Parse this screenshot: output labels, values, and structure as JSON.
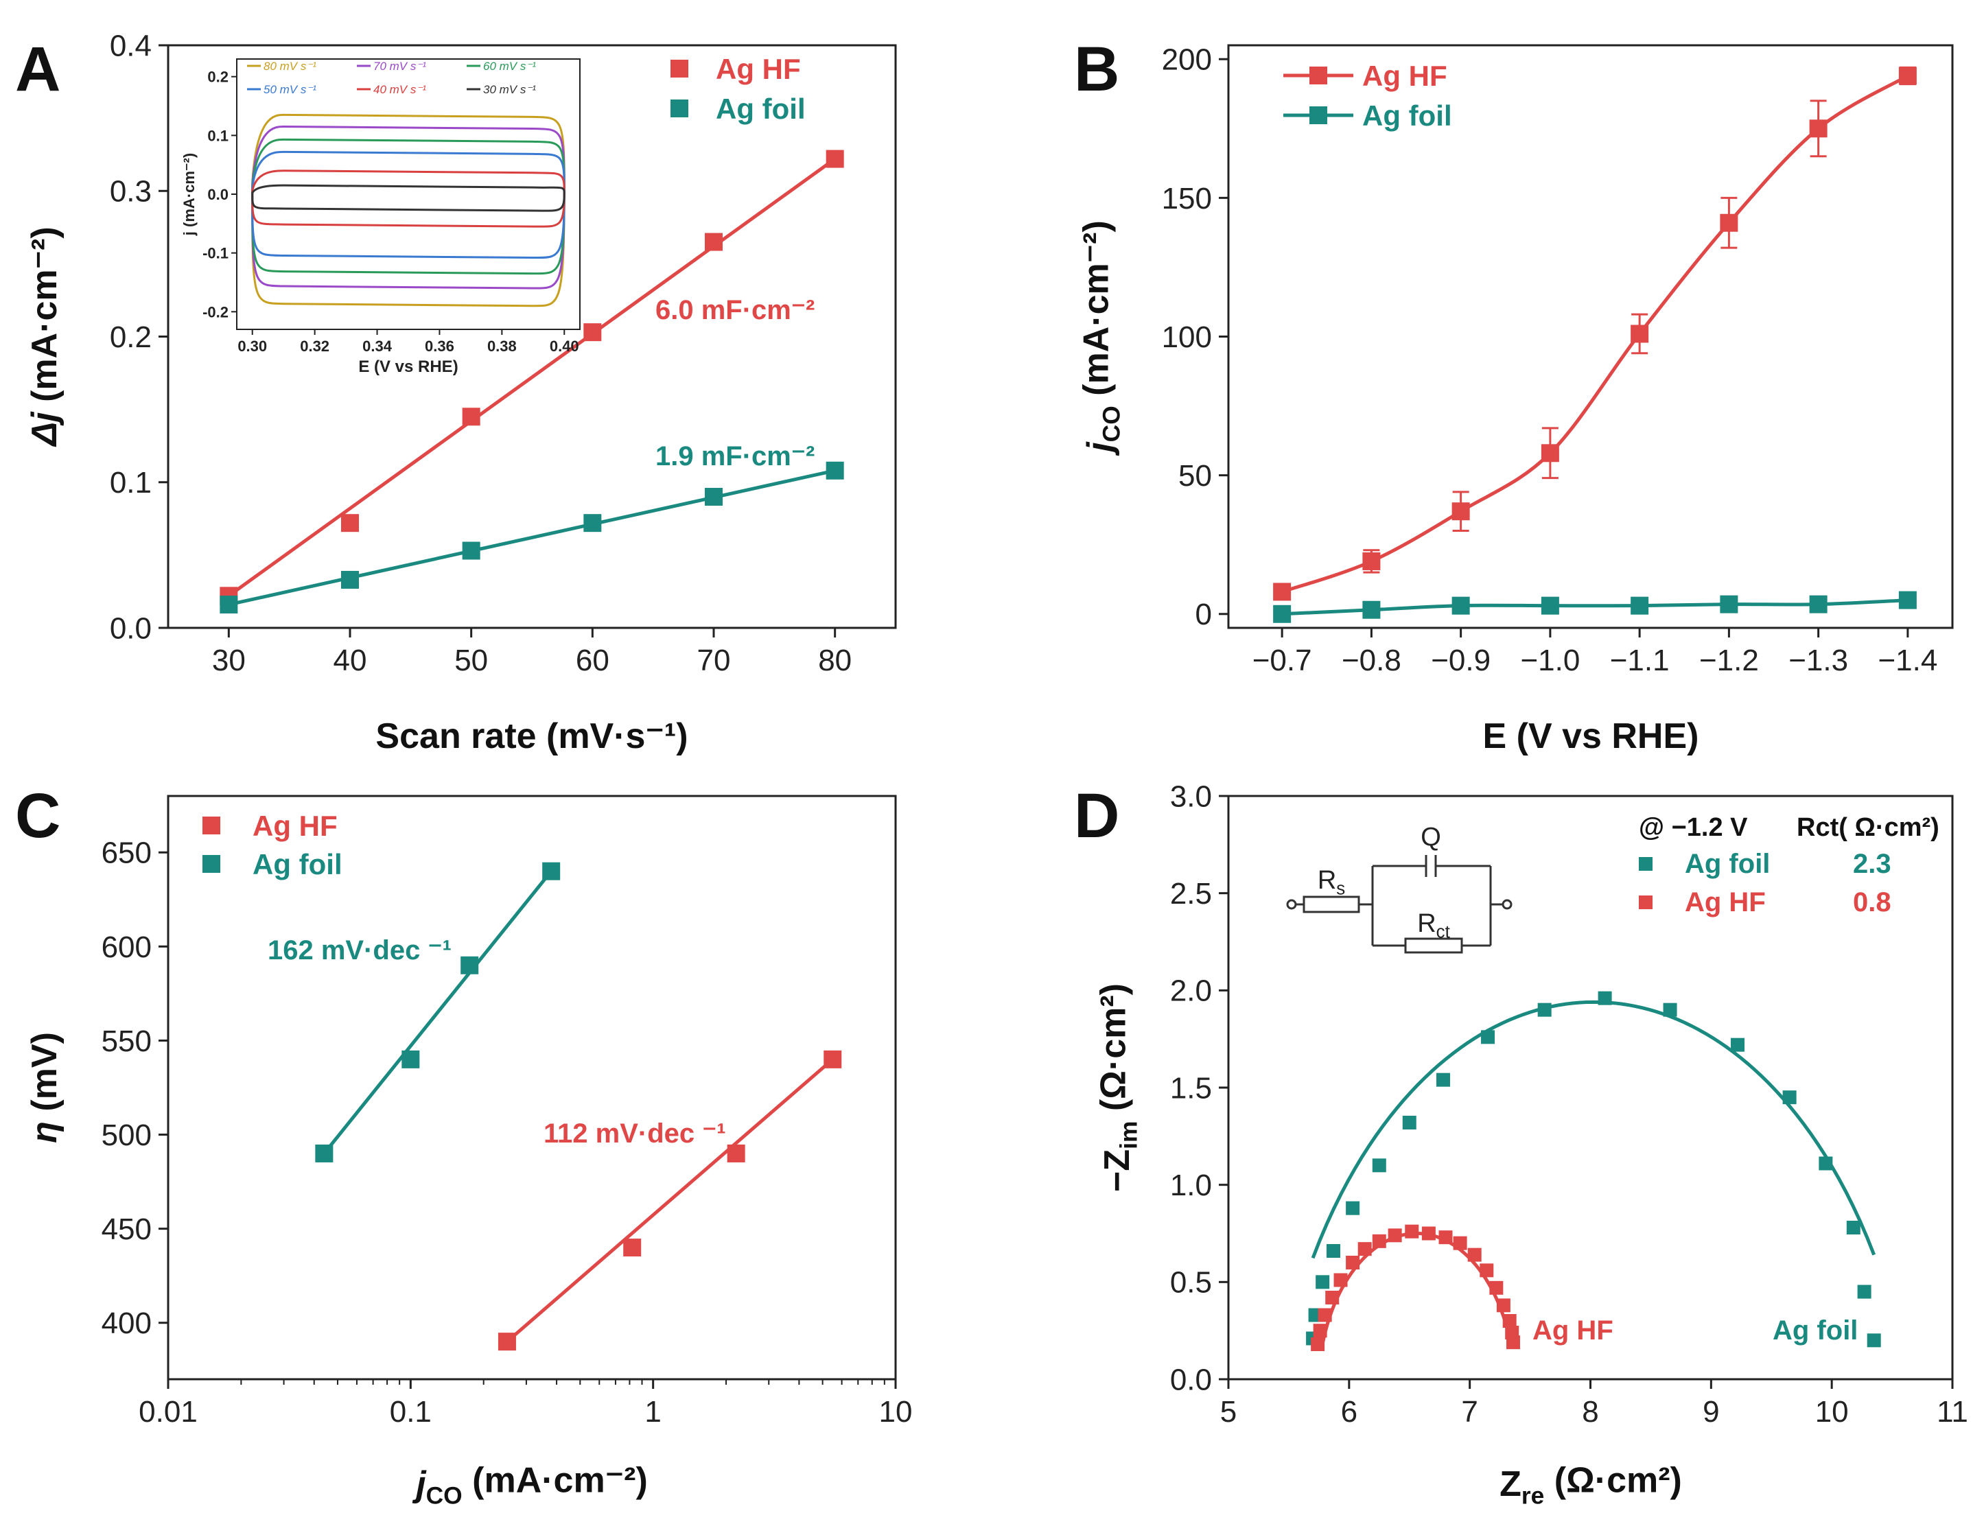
{
  "colors": {
    "red": "#e04848",
    "teal": "#1a8a80",
    "axis": "#222222"
  },
  "chart_data": [
    {
      "panel": "A",
      "type": "scatter",
      "xlabel": "Scan rate (mV·s⁻¹)",
      "ylabel_main": "Δj",
      "ylabel_unit": " (mA·cm⁻²)",
      "xlim": [
        25,
        85
      ],
      "ylim": [
        0,
        0.4
      ],
      "xticks": [
        30,
        40,
        50,
        60,
        70,
        80
      ],
      "xtick_labels": [
        "30",
        "40",
        "50",
        "60",
        "70",
        "80"
      ],
      "yticks": [
        0,
        0.1,
        0.2,
        0.3,
        0.4
      ],
      "ytick_labels": [
        "0.0",
        "0.1",
        "0.2",
        "0.3",
        "0.4"
      ],
      "legend": [
        "Ag HF",
        "Ag foil"
      ],
      "series": [
        {
          "name": "Ag HF",
          "color": "red",
          "x": [
            30,
            40,
            50,
            60,
            70,
            80
          ],
          "y": [
            0.022,
            0.072,
            0.145,
            0.203,
            0.265,
            0.322
          ],
          "fit": [
            [
              30,
              0.022
            ],
            [
              80,
              0.322
            ]
          ]
        },
        {
          "name": "Ag foil",
          "color": "teal",
          "x": [
            30,
            40,
            50,
            60,
            70,
            80
          ],
          "y": [
            0.016,
            0.033,
            0.053,
            0.072,
            0.09,
            0.108
          ],
          "fit": [
            [
              30,
              0.016
            ],
            [
              80,
              0.108
            ]
          ]
        }
      ],
      "annotations": [
        {
          "text": "6.0 mF·cm⁻²",
          "color": "red"
        },
        {
          "text": "1.9 mF·cm⁻²",
          "color": "teal"
        }
      ],
      "inset": {
        "type": "line",
        "xlabel": "E (V vs RHE)",
        "ylabel": "j (mA·cm⁻²)",
        "xlim": [
          0.295,
          0.405
        ],
        "ylim": [
          -0.23,
          0.23
        ],
        "xticks": [
          0.3,
          0.32,
          0.34,
          0.36,
          0.38,
          0.4
        ],
        "xtick_labels": [
          "0.30",
          "0.32",
          "0.34",
          "0.36",
          "0.38",
          "0.40"
        ],
        "yticks": [
          -0.2,
          -0.1,
          0.0,
          0.1,
          0.2
        ],
        "ytick_labels": [
          "-0.2",
          "-0.1",
          "0.0",
          "0.1",
          "0.2"
        ],
        "legend": [
          "80 mV s⁻¹",
          "70 mV s⁻¹",
          "60 mV s⁻¹",
          "50 mV s⁻¹",
          "40 mV s⁻¹",
          "30 mV s⁻¹"
        ],
        "series": [
          {
            "name": "80 mV s⁻¹",
            "color": "#c8a020",
            "top": 0.135,
            "bottom": -0.19
          },
          {
            "name": "70 mV s⁻¹",
            "color": "#9a4ac8",
            "top": 0.115,
            "bottom": -0.16
          },
          {
            "name": "60 mV s⁻¹",
            "color": "#2a9a5a",
            "top": 0.093,
            "bottom": -0.135
          },
          {
            "name": "50 mV s⁻¹",
            "color": "#3a7ad0",
            "top": 0.072,
            "bottom": -0.108
          },
          {
            "name": "40 mV s⁻¹",
            "color": "#d84040",
            "top": 0.04,
            "bottom": -0.055
          },
          {
            "name": "30 mV s⁻¹",
            "color": "#333333",
            "top": 0.015,
            "bottom": -0.028
          }
        ]
      }
    },
    {
      "panel": "B",
      "type": "line",
      "xlabel": "E (V vs RHE)",
      "ylabel_main": "j",
      "ylabel_sub": "CO",
      "ylabel_unit": " (mA·cm⁻²)",
      "xlim": [
        -0.64,
        -1.45
      ],
      "ylim": [
        -5,
        205
      ],
      "xticks": [
        -0.7,
        -0.8,
        -0.9,
        -1.0,
        -1.1,
        -1.2,
        -1.3,
        -1.4
      ],
      "xtick_labels": [
        "−0.7",
        "−0.8",
        "−0.9",
        "−1.0",
        "−1.1",
        "−1.2",
        "−1.3",
        "−1.4"
      ],
      "yticks": [
        0,
        50,
        100,
        150,
        200
      ],
      "ytick_labels": [
        "0",
        "50",
        "100",
        "150",
        "200"
      ],
      "legend": [
        "Ag HF",
        "Ag foil"
      ],
      "series": [
        {
          "name": "Ag HF",
          "color": "red",
          "x": [
            -0.7,
            -0.8,
            -0.9,
            -1.0,
            -1.1,
            -1.2,
            -1.3,
            -1.4
          ],
          "y": [
            8,
            19,
            37,
            58,
            101,
            141,
            175,
            194
          ],
          "err": [
            2,
            4,
            7,
            9,
            7,
            9,
            10,
            3
          ]
        },
        {
          "name": "Ag foil",
          "color": "teal",
          "x": [
            -0.7,
            -0.8,
            -0.9,
            -1.0,
            -1.1,
            -1.2,
            -1.3,
            -1.4
          ],
          "y": [
            0,
            1.5,
            3,
            3,
            3,
            3.5,
            3.5,
            5
          ],
          "err": [
            0,
            0,
            0,
            0,
            0,
            0,
            0,
            0
          ]
        }
      ]
    },
    {
      "panel": "C",
      "type": "scatter",
      "xscale": "log",
      "xlabel_main": "j",
      "xlabel_sub": "CO",
      "xlabel_unit": " (mA·cm⁻²)",
      "ylabel_main": "η",
      "ylabel_unit": " (mV)",
      "xlim": [
        0.01,
        10
      ],
      "ylim": [
        370,
        680
      ],
      "xticks": [
        0.01,
        0.1,
        1,
        10
      ],
      "xtick_labels": [
        "0.01",
        "0.1",
        "1",
        "10"
      ],
      "yticks": [
        400,
        450,
        500,
        550,
        600,
        650
      ],
      "ytick_labels": [
        "400",
        "450",
        "500",
        "550",
        "600",
        "650"
      ],
      "legend": [
        "Ag HF",
        "Ag foil"
      ],
      "series": [
        {
          "name": "Ag HF",
          "color": "red",
          "x": [
            0.25,
            0.82,
            2.2,
            5.5
          ],
          "y": [
            390,
            440,
            490,
            540
          ],
          "fit": [
            [
              0.25,
              390
            ],
            [
              5.5,
              540
            ]
          ]
        },
        {
          "name": "Ag foil",
          "color": "teal",
          "x": [
            0.044,
            0.1,
            0.175,
            0.38
          ],
          "y": [
            490,
            540,
            590,
            640
          ],
          "fit": [
            [
              0.044,
              490
            ],
            [
              0.38,
              640
            ]
          ]
        }
      ],
      "annotations": [
        {
          "text": "162 mV·dec ⁻¹",
          "color": "teal"
        },
        {
          "text": "112 mV·dec ⁻¹",
          "color": "red"
        }
      ]
    },
    {
      "panel": "D",
      "type": "scatter",
      "xlabel_main": "Z",
      "xlabel_sub": "re",
      "xlabel_unit": " (Ω·cm²)",
      "ylabel_main": "−Z",
      "ylabel_sub": "im",
      "ylabel_unit": " (Ω·cm²)",
      "xlim": [
        5,
        11
      ],
      "ylim": [
        0,
        3.0
      ],
      "xticks": [
        5,
        6,
        7,
        8,
        9,
        10,
        11
      ],
      "xtick_labels": [
        "5",
        "6",
        "7",
        "8",
        "9",
        "10",
        "11"
      ],
      "yticks": [
        0,
        0.5,
        1.0,
        1.5,
        2.0,
        2.5,
        3.0
      ],
      "ytick_labels": [
        "0.0",
        "0.5",
        "1.0",
        "1.5",
        "2.0",
        "2.5",
        "3.0"
      ],
      "table_header": [
        "@ −1.2 V",
        "Rct( Ω·cm²)"
      ],
      "table_rows": [
        {
          "name": "Ag foil",
          "value": "2.3",
          "color": "teal"
        },
        {
          "name": "Ag HF",
          "value": "0.8",
          "color": "red"
        }
      ],
      "circuit_labels": {
        "rs": "Rs",
        "q": "Q",
        "rct": "Rct"
      },
      "series": [
        {
          "name": "Ag foil",
          "color": "teal",
          "x": [
            5.7,
            5.72,
            5.78,
            5.87,
            6.03,
            6.25,
            6.5,
            6.78,
            7.15,
            7.62,
            8.12,
            8.66,
            9.22,
            9.65,
            9.95,
            10.18,
            10.27,
            10.35
          ],
          "y": [
            0.21,
            0.33,
            0.5,
            0.66,
            0.88,
            1.1,
            1.32,
            1.54,
            1.76,
            1.9,
            1.96,
            1.9,
            1.72,
            1.45,
            1.11,
            0.78,
            0.45,
            0.2
          ],
          "fit_circle": {
            "cx": 8.03,
            "cy": -0.78,
            "r": 2.72
          }
        },
        {
          "name": "Ag HF",
          "color": "red",
          "x": [
            5.74,
            5.76,
            5.8,
            5.86,
            5.93,
            6.03,
            6.13,
            6.25,
            6.38,
            6.52,
            6.66,
            6.8,
            6.92,
            7.04,
            7.14,
            7.22,
            7.28,
            7.33,
            7.35,
            7.36
          ],
          "y": [
            0.18,
            0.25,
            0.33,
            0.42,
            0.51,
            0.6,
            0.67,
            0.71,
            0.74,
            0.76,
            0.75,
            0.73,
            0.7,
            0.64,
            0.56,
            0.47,
            0.38,
            0.3,
            0.24,
            0.19
          ],
          "fit_circle": {
            "cx": 6.56,
            "cy": -0.07,
            "r": 0.82
          }
        }
      ],
      "end_labels": [
        "Ag HF",
        "Ag foil"
      ]
    }
  ],
  "panel_letters": [
    "A",
    "B",
    "C",
    "D"
  ]
}
